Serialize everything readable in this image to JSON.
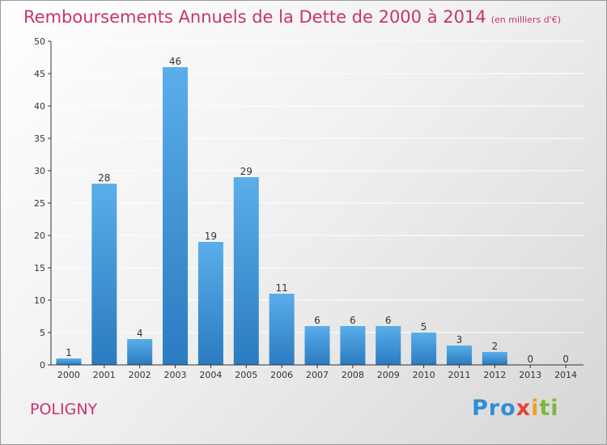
{
  "header": {
    "title": "Remboursements Annuels de la Dette de 2000 à 2014",
    "subtitle": "(en milliers d'€)"
  },
  "footer": {
    "commune": "POLIGNY",
    "logo_text": "Proxiti"
  },
  "colors": {
    "title": "#c8336f",
    "bar_top": "#5aaeea",
    "bar_bottom": "#2a7bc0",
    "axis": "#333333",
    "grid": "#ffffff"
  },
  "chart_data": {
    "type": "bar",
    "title": "Remboursements Annuels de la Dette de 2000 à 2014",
    "subtitle": "(en milliers d'€)",
    "xlabel": "",
    "ylabel": "",
    "categories": [
      "2000",
      "2001",
      "2002",
      "2003",
      "2004",
      "2005",
      "2006",
      "2007",
      "2008",
      "2009",
      "2010",
      "2011",
      "2012",
      "2013",
      "2014"
    ],
    "values": [
      1,
      28,
      4,
      46,
      19,
      29,
      11,
      6,
      6,
      6,
      5,
      3,
      2,
      0,
      0
    ],
    "ylim": [
      0,
      50
    ],
    "yticks": [
      0,
      5,
      10,
      15,
      20,
      25,
      30,
      35,
      40,
      45,
      50
    ],
    "grid": true,
    "data_labels": true
  }
}
